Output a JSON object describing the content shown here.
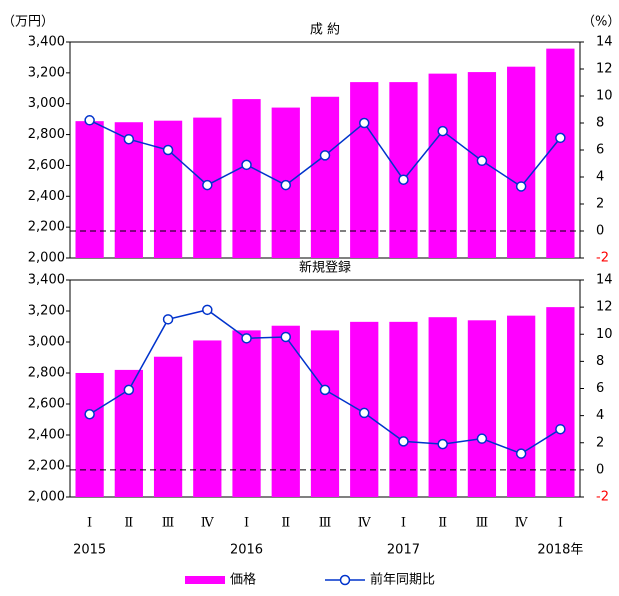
{
  "chart_data": [
    {
      "type": "bar_line",
      "title": "成 約",
      "y_unit": "（万円）",
      "y2_unit": "（%）",
      "ylim": [
        2000,
        3400
      ],
      "yticks": [
        {
          "value": 2000,
          "label": "2,000"
        },
        {
          "value": 2200,
          "label": "2,200"
        },
        {
          "value": 2400,
          "label": "2,400"
        },
        {
          "value": 2600,
          "label": "2,600"
        },
        {
          "value": 2800,
          "label": "2,800"
        },
        {
          "value": 3000,
          "label": "3,000"
        },
        {
          "value": 3200,
          "label": "3,200"
        },
        {
          "value": 3400,
          "label": "3,400"
        }
      ],
      "y2lim": [
        -2,
        14
      ],
      "y2ticks": [
        -2,
        0,
        2,
        4,
        6,
        8,
        10,
        12,
        14
      ],
      "negative_color": "#ff0000",
      "dashed_line_y2": 0,
      "series": [
        {
          "color": "#ff00ff",
          "values": [
            2887,
            2880,
            2890,
            2910,
            3030,
            2975,
            3045,
            3140,
            3140,
            3195,
            3205,
            3240,
            3357
          ]
        },
        {
          "color": "#0033cc",
          "axis": "y2",
          "values": [
            8.2,
            6.8,
            6.0,
            3.4,
            4.9,
            3.4,
            5.6,
            8.0,
            3.8,
            7.4,
            5.2,
            3.3,
            6.9
          ]
        }
      ]
    },
    {
      "type": "bar_line",
      "title": "新規登録",
      "ylim": [
        2000,
        3400
      ],
      "yticks": [
        {
          "value": 2000,
          "label": "2,000"
        },
        {
          "value": 2200,
          "label": "2,200"
        },
        {
          "value": 2400,
          "label": "2,400"
        },
        {
          "value": 2600,
          "label": "2,600"
        },
        {
          "value": 2800,
          "label": "2,800"
        },
        {
          "value": 3000,
          "label": "3,000"
        },
        {
          "value": 3200,
          "label": "3,200"
        },
        {
          "value": 3400,
          "label": "3,400"
        }
      ],
      "y2lim": [
        -2,
        14
      ],
      "y2ticks": [
        -2,
        0,
        2,
        4,
        6,
        8,
        10,
        12,
        14
      ],
      "negative_color": "#ff0000",
      "dashed_line_y2": 0,
      "categories": [
        "Ⅰ",
        "Ⅱ",
        "Ⅲ",
        "Ⅳ",
        "Ⅰ",
        "Ⅱ",
        "Ⅲ",
        "Ⅳ",
        "Ⅰ",
        "Ⅱ",
        "Ⅲ",
        "Ⅳ",
        "Ⅰ"
      ],
      "years": [
        "2015",
        "2016",
        "2017",
        "2018年"
      ],
      "series": [
        {
          "name": "価格",
          "color": "#ff00ff",
          "values": [
            2800,
            2820,
            2905,
            3010,
            3075,
            3105,
            3075,
            3130,
            3130,
            3160,
            3140,
            3170,
            3225
          ]
        },
        {
          "name": "前年同期比",
          "color": "#0033cc",
          "axis": "y2",
          "values": [
            4.1,
            5.9,
            11.1,
            11.8,
            9.7,
            9.8,
            5.9,
            4.2,
            2.1,
            1.9,
            2.3,
            1.2,
            3.0
          ]
        }
      ]
    }
  ]
}
